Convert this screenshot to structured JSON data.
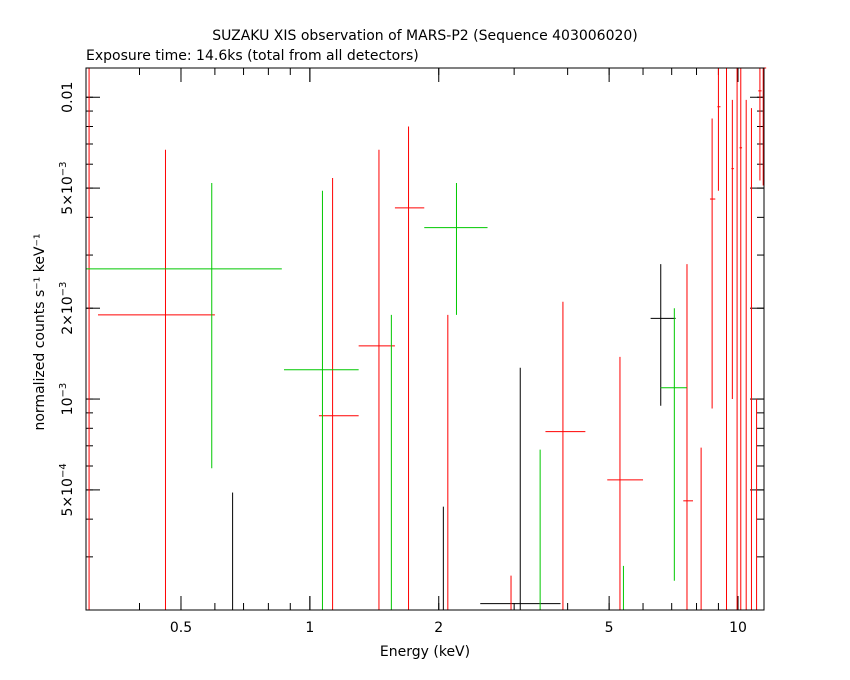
{
  "chart_data": {
    "type": "scatter",
    "title": "SUZAKU XIS observation of MARS-P2 (Sequence 403006020)",
    "subtitle": "Exposure time: 14.6ks (total from all detectors)",
    "xlabel": "Energy (keV)",
    "ylabel": "normalized counts s⁻¹ keV⁻¹",
    "xscale": "log",
    "yscale": "log",
    "xlim": [
      0.3,
      11.5
    ],
    "ylim": [
      0.0002,
      0.0125
    ],
    "x_ticks": [
      {
        "value": 0.5,
        "label": "0.5"
      },
      {
        "value": 1,
        "label": "1"
      },
      {
        "value": 2,
        "label": "2"
      },
      {
        "value": 5,
        "label": "5"
      },
      {
        "value": 10,
        "label": "10"
      }
    ],
    "y_ticks": [
      {
        "value": 0.0005,
        "mant": "5×10",
        "exp": "−4"
      },
      {
        "value": 0.001,
        "mant": "10",
        "exp": "−3"
      },
      {
        "value": 0.002,
        "mant": "2×10",
        "exp": "−3"
      },
      {
        "value": 0.005,
        "mant": "5×10",
        "exp": "−3"
      },
      {
        "value": 0.01,
        "mant": "0.01",
        "exp": ""
      }
    ],
    "series": [
      {
        "color": "#000000",
        "points": [
          {
            "x": 0.66,
            "xlo": 0.66,
            "xhi": 0.66,
            "y": 0.0002,
            "ylo": 0.0002,
            "yhi": 0.00049
          },
          {
            "x": 2.05,
            "xlo": 2.05,
            "xhi": 2.05,
            "y": 0.0002,
            "ylo": 0.0002,
            "yhi": 0.00044
          },
          {
            "x": 3.1,
            "xlo": 2.5,
            "xhi": 3.85,
            "y": 0.00021,
            "ylo": 0.0002,
            "yhi": 0.00127
          },
          {
            "x": 6.6,
            "xlo": 6.25,
            "xhi": 7.15,
            "y": 0.00185,
            "ylo": 0.00095,
            "yhi": 0.0028
          }
        ]
      },
      {
        "color": "#ff0000",
        "points": [
          {
            "x": 0.305,
            "xlo": 0.305,
            "xhi": 0.305,
            "y": 0.0125,
            "ylo": 0.0002,
            "yhi": 0.0125
          },
          {
            "x": 0.46,
            "xlo": 0.32,
            "xhi": 0.6,
            "y": 0.0019,
            "ylo": 0.0002,
            "yhi": 0.0067
          },
          {
            "x": 1.13,
            "xlo": 1.05,
            "xhi": 1.3,
            "y": 0.00088,
            "ylo": 0.0002,
            "yhi": 0.0054
          },
          {
            "x": 1.45,
            "xlo": 1.3,
            "xhi": 1.58,
            "y": 0.0015,
            "ylo": 0.0002,
            "yhi": 0.0067
          },
          {
            "x": 1.7,
            "xlo": 1.58,
            "xhi": 1.85,
            "y": 0.0043,
            "ylo": 0.0002,
            "yhi": 0.008
          },
          {
            "x": 2.1,
            "xlo": 2.1,
            "xhi": 2.1,
            "y": 0.0002,
            "ylo": 0.0002,
            "yhi": 0.0019
          },
          {
            "x": 2.95,
            "xlo": 2.95,
            "xhi": 2.95,
            "y": 0.0002,
            "ylo": 0.0002,
            "yhi": 0.00026
          },
          {
            "x": 3.9,
            "xlo": 3.55,
            "xhi": 4.4,
            "y": 0.00078,
            "ylo": 0.0002,
            "yhi": 0.0021
          },
          {
            "x": 5.3,
            "xlo": 4.95,
            "xhi": 6.0,
            "y": 0.00054,
            "ylo": 0.0002,
            "yhi": 0.00138
          },
          {
            "x": 7.6,
            "xlo": 7.45,
            "xhi": 7.85,
            "y": 0.00046,
            "ylo": 0.0002,
            "yhi": 0.0028
          },
          {
            "x": 8.2,
            "xlo": 8.2,
            "xhi": 8.2,
            "y": 0.0002,
            "ylo": 0.0002,
            "yhi": 0.00069
          },
          {
            "x": 8.7,
            "xlo": 8.6,
            "xhi": 8.85,
            "y": 0.0046,
            "ylo": 0.00093,
            "yhi": 0.0085
          },
          {
            "x": 9.0,
            "xlo": 8.95,
            "xhi": 9.1,
            "y": 0.0093,
            "ylo": 0.0049,
            "yhi": 0.0125
          },
          {
            "x": 9.4,
            "xlo": 9.4,
            "xhi": 9.4,
            "y": 0.0002,
            "ylo": 0.0002,
            "yhi": 0.0125
          },
          {
            "x": 9.7,
            "xlo": 9.65,
            "xhi": 9.78,
            "y": 0.0058,
            "ylo": 0.001,
            "yhi": 0.0098
          },
          {
            "x": 9.95,
            "xlo": 9.95,
            "xhi": 9.95,
            "y": 0.0002,
            "ylo": 0.0002,
            "yhi": 0.0125
          },
          {
            "x": 10.15,
            "xlo": 10.08,
            "xhi": 10.22,
            "y": 0.0068,
            "ylo": 0.0002,
            "yhi": 0.0125
          },
          {
            "x": 10.45,
            "xlo": 10.45,
            "xhi": 10.45,
            "y": 0.0002,
            "ylo": 0.0002,
            "yhi": 0.0098
          },
          {
            "x": 10.75,
            "xlo": 10.75,
            "xhi": 10.75,
            "y": 0.0002,
            "ylo": 0.0002,
            "yhi": 0.0092
          },
          {
            "x": 11.05,
            "xlo": 11.05,
            "xhi": 11.05,
            "y": 0.0002,
            "ylo": 0.0002,
            "yhi": 0.001
          },
          {
            "x": 11.25,
            "xlo": 11.15,
            "xhi": 11.35,
            "y": 0.0105,
            "ylo": 0.0053,
            "yhi": 0.0125
          },
          {
            "x": 11.45,
            "xlo": 11.45,
            "xhi": 11.45,
            "y": 0.0125,
            "ylo": 0.0051,
            "yhi": 0.0125
          }
        ]
      },
      {
        "color": "#00c800",
        "points": [
          {
            "x": 0.59,
            "xlo": 0.3,
            "xhi": 0.86,
            "y": 0.0027,
            "ylo": 0.00059,
            "yhi": 0.0052
          },
          {
            "x": 1.07,
            "xlo": 0.87,
            "xhi": 1.3,
            "y": 0.00125,
            "ylo": 0.0002,
            "yhi": 0.0049
          },
          {
            "x": 1.55,
            "xlo": 1.55,
            "xhi": 1.55,
            "y": 0.0002,
            "ylo": 0.0002,
            "yhi": 0.0019
          },
          {
            "x": 2.2,
            "xlo": 1.85,
            "xhi": 2.6,
            "y": 0.0037,
            "ylo": 0.0019,
            "yhi": 0.0052
          },
          {
            "x": 3.45,
            "xlo": 3.45,
            "xhi": 3.45,
            "y": 0.0002,
            "ylo": 0.0002,
            "yhi": 0.00068
          },
          {
            "x": 5.4,
            "xlo": 5.4,
            "xhi": 5.4,
            "y": 0.0002,
            "ylo": 0.0002,
            "yhi": 0.00028
          },
          {
            "x": 7.1,
            "xlo": 6.6,
            "xhi": 7.6,
            "y": 0.00109,
            "ylo": 0.00025,
            "yhi": 0.002
          }
        ]
      }
    ]
  }
}
